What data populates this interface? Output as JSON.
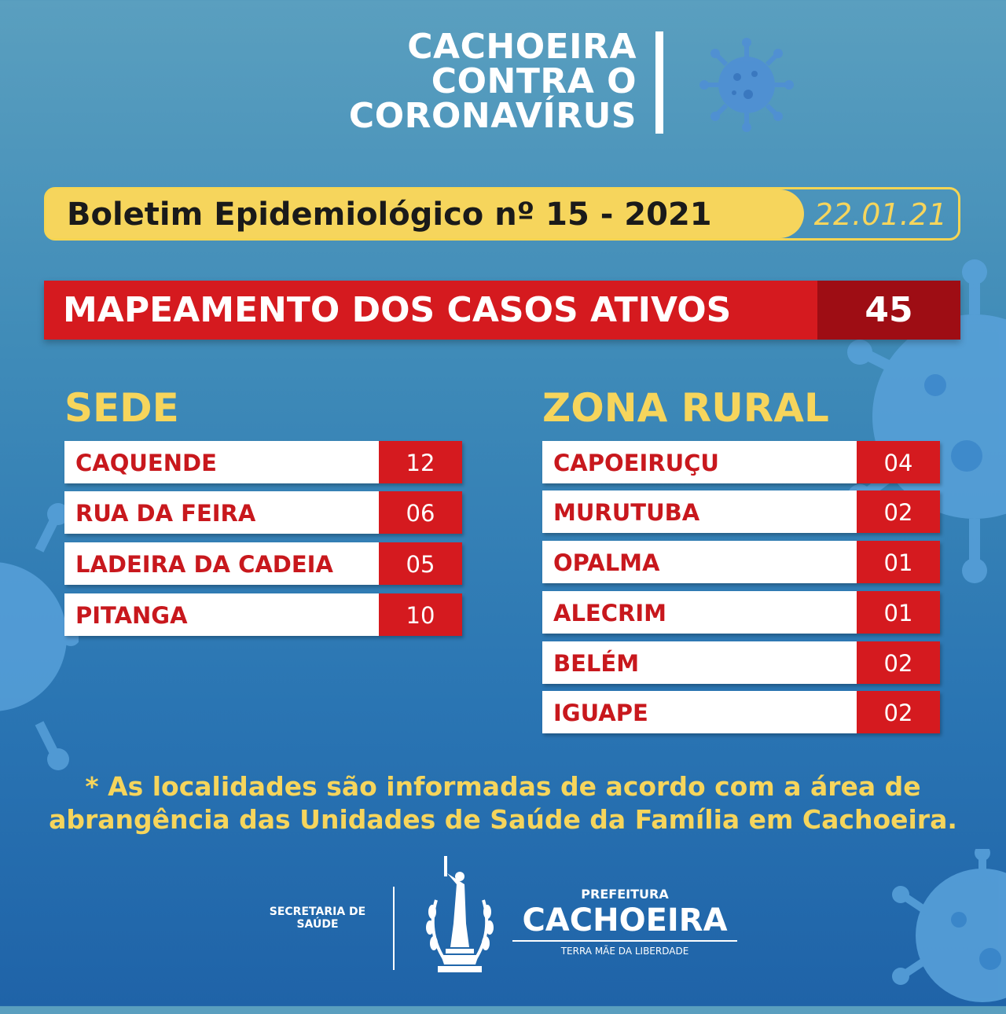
{
  "title": {
    "line1": "CACHOEIRA",
    "line2": "CONTRA O",
    "line3": "CORONAVÍRUS"
  },
  "bulletin": {
    "label": "Boletim Epidemiológico nº 15 - 2021",
    "date": "22.01.21"
  },
  "mapping": {
    "label": "MAPEAMENTO DOS CASOS ATIVOS",
    "total": "45"
  },
  "sede": {
    "title": "SEDE",
    "rows": [
      {
        "name": "CAQUENDE",
        "count": "12"
      },
      {
        "name": "RUA DA FEIRA",
        "count": "06"
      },
      {
        "name": "LADEIRA DA CADEIA",
        "count": "05"
      },
      {
        "name": "PITANGA",
        "count": "10"
      }
    ]
  },
  "zona_rural": {
    "title": "ZONA RURAL",
    "rows": [
      {
        "name": "CAPOEIRUÇU",
        "count": "04"
      },
      {
        "name": "MURUTUBA",
        "count": "02"
      },
      {
        "name": "OPALMA",
        "count": "01"
      },
      {
        "name": "ALECRIM",
        "count": "01"
      },
      {
        "name": "BELÉM",
        "count": "02"
      },
      {
        "name": "IGUAPE",
        "count": "02"
      }
    ]
  },
  "footnote": {
    "line1": "* As localidades são informadas de acordo com a área de",
    "line2": "abrangência das Unidades de Saúde da Família em Cachoeira."
  },
  "footer": {
    "secretaria_line1": "SECRETARIA DE",
    "secretaria_line2": "SAÚDE",
    "prefeitura_small": "PREFEITURA",
    "prefeitura_big": "CACHOEIRA",
    "prefeitura_tagline": "TERRA MÃE DA LIBERDADE"
  },
  "colors": {
    "background": "#3f8bb8",
    "accent_yellow": "#f6d55c",
    "accent_red": "#d51a1f",
    "dark_red": "#9e0d14",
    "virus_blue": "#5aa3dc"
  },
  "icons": [
    "virus-icon",
    "liberty-statue-emblem-icon"
  ]
}
